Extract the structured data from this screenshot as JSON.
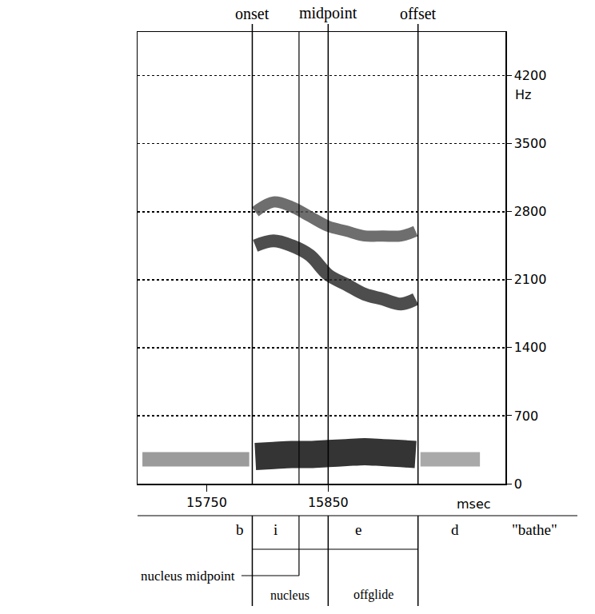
{
  "chart_data": {
    "type": "line",
    "xlabel": "msec",
    "ylabel": "Hz",
    "xlim": [
      15693,
      15996
    ],
    "xticks": [
      15750,
      15850
    ],
    "ylim": [
      0,
      4650
    ],
    "yticks": [
      0,
      700,
      1400,
      2100,
      2800,
      3500,
      4200
    ],
    "grid": true,
    "tick_labels": true,
    "series": [
      {
        "x": [
          15790,
          15805,
          15820,
          15835,
          15850,
          15865,
          15880,
          15895,
          15910,
          15922
        ],
        "values": [
          280,
          290,
          300,
          300,
          310,
          320,
          330,
          320,
          310,
          300
        ],
        "color": "#111111"
      },
      {
        "x": [
          15790,
          15805,
          15820,
          15835,
          15850,
          15865,
          15880,
          15895,
          15910,
          15922
        ],
        "values": [
          2450,
          2500,
          2450,
          2350,
          2150,
          2050,
          1950,
          1900,
          1850,
          1900
        ],
        "color": "#2e2e2e"
      },
      {
        "x": [
          15790,
          15805,
          15820,
          15835,
          15850,
          15865,
          15880,
          15895,
          15910,
          15922
        ],
        "values": [
          2800,
          2900,
          2850,
          2750,
          2650,
          2600,
          2550,
          2550,
          2550,
          2600
        ],
        "color": "#555555"
      },
      {
        "x": [
          15697,
          15785
        ],
        "values": [
          250,
          250
        ],
        "color": "#8a8a8a"
      },
      {
        "x": [
          15926,
          15975
        ],
        "values": [
          250,
          250
        ],
        "color": "#9a9a9a"
      }
    ],
    "top_markers": [
      {
        "label": "onset",
        "x": 15787.5
      },
      {
        "label": "midpoint",
        "x": 15850
      },
      {
        "label": "offset",
        "x": 15924
      }
    ],
    "nucleus_midpoint": {
      "label": "nucleus midpoint",
      "x": 15826
    },
    "segments": [
      "b",
      "i",
      "e",
      "d"
    ],
    "word": "\"bathe\"",
    "spans": [
      {
        "label": "nucleus",
        "from": 15787.5,
        "to": 15850
      },
      {
        "label": "offglide",
        "from": 15850,
        "to": 15924
      }
    ]
  }
}
